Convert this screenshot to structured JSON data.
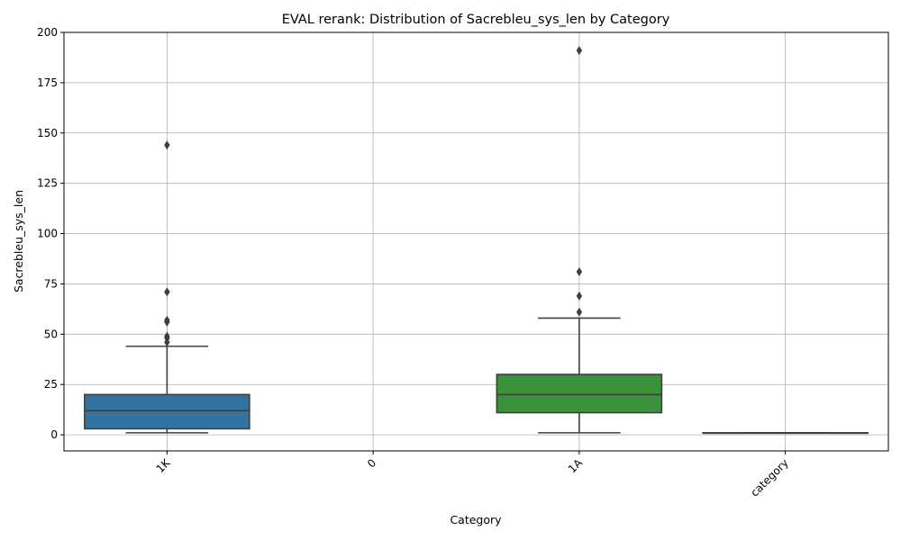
{
  "chart_data": {
    "type": "box",
    "title": "EVAL rerank: Distribution of Sacrebleu_sys_len by Category",
    "xlabel": "Category",
    "ylabel": "Sacrebleu_sys_len",
    "ylim": [
      -8,
      200
    ],
    "yticks": [
      0,
      25,
      50,
      75,
      100,
      125,
      150,
      175,
      200
    ],
    "grid": true,
    "categories": [
      "1K",
      "0",
      "1A",
      "category"
    ],
    "boxes": [
      {
        "category": "1K",
        "color": "#3274a1",
        "q1": 3,
        "median": 12,
        "q3": 20,
        "whisker_low": 1,
        "whisker_high": 44,
        "outliers": [
          46,
          48,
          49,
          56,
          57,
          71,
          144
        ]
      },
      {
        "category": "0",
        "color": "#e1812c",
        "empty": true
      },
      {
        "category": "1A",
        "color": "#3a923a",
        "q1": 11,
        "median": 20,
        "q3": 30,
        "whisker_low": 1,
        "whisker_high": 58,
        "outliers": [
          61,
          69,
          81,
          191
        ]
      },
      {
        "category": "category",
        "color": "#c03d3e",
        "q1": 1,
        "median": 1,
        "q3": 1,
        "whisker_low": 1,
        "whisker_high": 1,
        "outliers": []
      }
    ]
  }
}
